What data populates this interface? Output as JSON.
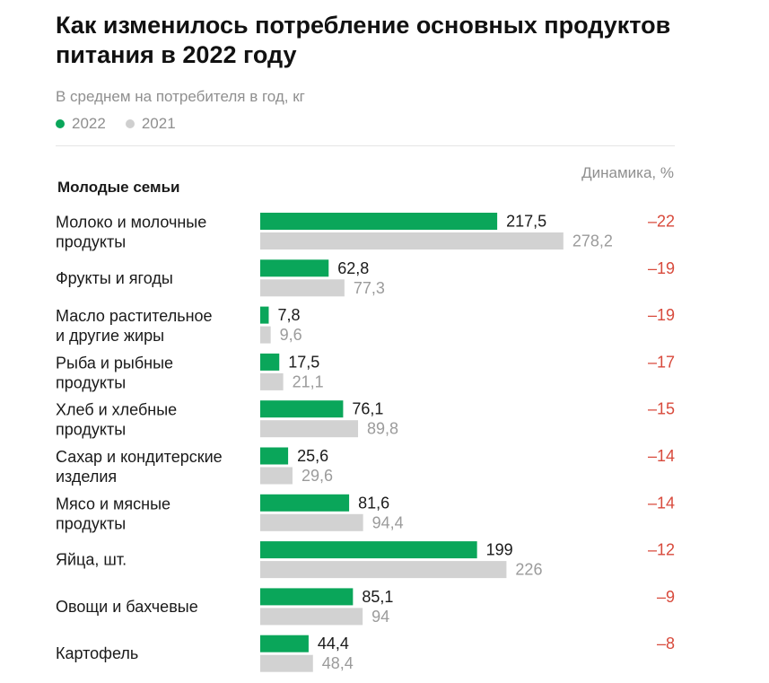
{
  "chart_data": {
    "type": "bar",
    "orientation": "horizontal",
    "title": "Как изменилось потребление основных продуктов питания в 2022 году",
    "subtitle": "В среднем на потребителя в год, кг",
    "section": "Молодые семьи",
    "dynamics_header": "Динамика, %",
    "legend_position": "top-left",
    "grid": false,
    "xlim": [
      0,
      280
    ],
    "categories": [
      [
        "Молоко и молочные",
        "продукты"
      ],
      [
        "Фрукты и ягоды"
      ],
      [
        "Масло растительное",
        "и другие жиры"
      ],
      [
        "Рыба и рыбные",
        "продукты"
      ],
      [
        "Хлеб и хлебные",
        "продукты"
      ],
      [
        "Сахар и кондитерские",
        "изделия"
      ],
      [
        "Мясо и мясные",
        "продукты"
      ],
      [
        "Яйца, шт."
      ],
      [
        "Овощи и бахчевые"
      ],
      [
        "Картофель"
      ]
    ],
    "series": [
      {
        "name": "2022",
        "color": "#0aa65a",
        "values": [
          217.5,
          62.8,
          7.8,
          17.5,
          76.1,
          25.6,
          81.6,
          199,
          85.1,
          44.4
        ],
        "labels": [
          "217,5",
          "62,8",
          "7,8",
          "17,5",
          "76,1",
          "25,6",
          "81,6",
          "199",
          "85,1",
          "44,4"
        ]
      },
      {
        "name": "2021",
        "color": "#d2d2d2",
        "values": [
          278.2,
          77.3,
          9.6,
          21.1,
          89.8,
          29.6,
          94.4,
          226,
          94,
          48.4
        ],
        "labels": [
          "278,2",
          "77,3",
          "9,6",
          "21,1",
          "89,8",
          "29,6",
          "94,4",
          "226",
          "94",
          "48,4"
        ]
      }
    ],
    "dynamics": [
      "–22",
      "–19",
      "–19",
      "–17",
      "–15",
      "–14",
      "–14",
      "–12",
      "–9",
      "–8"
    ]
  }
}
